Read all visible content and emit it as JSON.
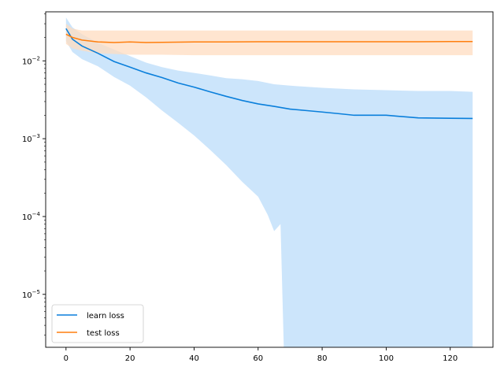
{
  "chart_data": {
    "type": "line",
    "title": "",
    "xlabel": "",
    "ylabel": "",
    "xlim": [
      -6.35,
      133.35
    ],
    "ylim_log10": [
      -5.68,
      -1.37
    ],
    "y_scale": "log",
    "grid": false,
    "legend_position": "lower-left",
    "x_ticks": [
      0,
      20,
      40,
      60,
      80,
      100,
      120
    ],
    "x_tick_labels": [
      "0",
      "20",
      "40",
      "60",
      "80",
      "100",
      "120"
    ],
    "y_ticks_log10": [
      -5,
      -4,
      -3,
      -2
    ],
    "y_tick_labels": [
      {
        "base": "10",
        "exp": "−5"
      },
      {
        "base": "10",
        "exp": "−4"
      },
      {
        "base": "10",
        "exp": "−3"
      },
      {
        "base": "10",
        "exp": "−2"
      }
    ],
    "series": [
      {
        "name": "learn loss",
        "color": "#0a7fdb",
        "band_color": "#cce5fb",
        "mean_points": [
          [
            0,
            0.026
          ],
          [
            2,
            0.019
          ],
          [
            5,
            0.0155
          ],
          [
            10,
            0.0125
          ],
          [
            15,
            0.0098
          ],
          [
            20,
            0.0083
          ],
          [
            25,
            0.007
          ],
          [
            30,
            0.0061
          ],
          [
            35,
            0.0052
          ],
          [
            40,
            0.0046
          ],
          [
            45,
            0.004
          ],
          [
            50,
            0.0035
          ],
          [
            55,
            0.0031
          ],
          [
            60,
            0.0028
          ],
          [
            65,
            0.0026
          ],
          [
            70,
            0.0024
          ],
          [
            75,
            0.0023
          ],
          [
            80,
            0.0022
          ],
          [
            85,
            0.0021
          ],
          [
            90,
            0.002
          ],
          [
            100,
            0.002
          ],
          [
            110,
            0.00185
          ],
          [
            120,
            0.00183
          ],
          [
            127,
            0.00182
          ]
        ],
        "upper_points": [
          [
            0,
            0.036
          ],
          [
            2,
            0.027
          ],
          [
            5,
            0.022
          ],
          [
            10,
            0.017
          ],
          [
            15,
            0.014
          ],
          [
            20,
            0.0115
          ],
          [
            25,
            0.0095
          ],
          [
            30,
            0.0083
          ],
          [
            35,
            0.0075
          ],
          [
            40,
            0.007
          ],
          [
            45,
            0.0065
          ],
          [
            50,
            0.006
          ],
          [
            55,
            0.0058
          ],
          [
            60,
            0.0055
          ],
          [
            65,
            0.005
          ],
          [
            70,
            0.0048
          ],
          [
            80,
            0.0045
          ],
          [
            90,
            0.0043
          ],
          [
            100,
            0.0042
          ],
          [
            110,
            0.0041
          ],
          [
            120,
            0.0041
          ],
          [
            127,
            0.004
          ]
        ],
        "lower_points": [
          [
            0,
            0.018
          ],
          [
            2,
            0.013
          ],
          [
            5,
            0.0105
          ],
          [
            10,
            0.0085
          ],
          [
            15,
            0.0062
          ],
          [
            20,
            0.0048
          ],
          [
            25,
            0.0034
          ],
          [
            30,
            0.0023
          ],
          [
            35,
            0.0016
          ],
          [
            40,
            0.0011
          ],
          [
            45,
            0.00072
          ],
          [
            50,
            0.00046
          ],
          [
            55,
            0.00028
          ],
          [
            60,
            0.00018
          ],
          [
            63,
            0.000105
          ],
          [
            65,
            6.5e-05
          ],
          [
            67,
            8e-05
          ],
          [
            68,
            2.2e-06
          ]
        ]
      },
      {
        "name": "test loss",
        "color": "#ff7f0e",
        "band_color": "#ffdcc0",
        "mean_points": [
          [
            0,
            0.022
          ],
          [
            2,
            0.02
          ],
          [
            5,
            0.0185
          ],
          [
            10,
            0.0175
          ],
          [
            15,
            0.0172
          ],
          [
            20,
            0.0175
          ],
          [
            25,
            0.0172
          ],
          [
            30,
            0.0173
          ],
          [
            40,
            0.0175
          ],
          [
            50,
            0.0175
          ],
          [
            60,
            0.0176
          ],
          [
            70,
            0.0176
          ],
          [
            80,
            0.0176
          ],
          [
            90,
            0.0176
          ],
          [
            100,
            0.0176
          ],
          [
            110,
            0.0176
          ],
          [
            120,
            0.0177
          ],
          [
            127,
            0.0177
          ]
        ],
        "upper_points": [
          [
            0,
            0.03
          ],
          [
            2,
            0.026
          ],
          [
            5,
            0.0245
          ],
          [
            10,
            0.0245
          ],
          [
            20,
            0.0245
          ],
          [
            30,
            0.0245
          ],
          [
            40,
            0.0245
          ],
          [
            50,
            0.0245
          ],
          [
            60,
            0.0245
          ],
          [
            70,
            0.0245
          ],
          [
            80,
            0.0245
          ],
          [
            90,
            0.0245
          ],
          [
            100,
            0.0245
          ],
          [
            110,
            0.0245
          ],
          [
            120,
            0.0245
          ],
          [
            127,
            0.0245
          ]
        ],
        "lower_points": [
          [
            0,
            0.0165
          ],
          [
            2,
            0.0145
          ],
          [
            5,
            0.0135
          ],
          [
            10,
            0.0125
          ],
          [
            20,
            0.012
          ],
          [
            30,
            0.012
          ],
          [
            40,
            0.0118
          ],
          [
            50,
            0.0118
          ],
          [
            60,
            0.0118
          ],
          [
            70,
            0.0118
          ],
          [
            80,
            0.0118
          ],
          [
            90,
            0.0118
          ],
          [
            100,
            0.0118
          ],
          [
            110,
            0.0118
          ],
          [
            120,
            0.0118
          ],
          [
            127,
            0.0118
          ]
        ]
      }
    ]
  }
}
